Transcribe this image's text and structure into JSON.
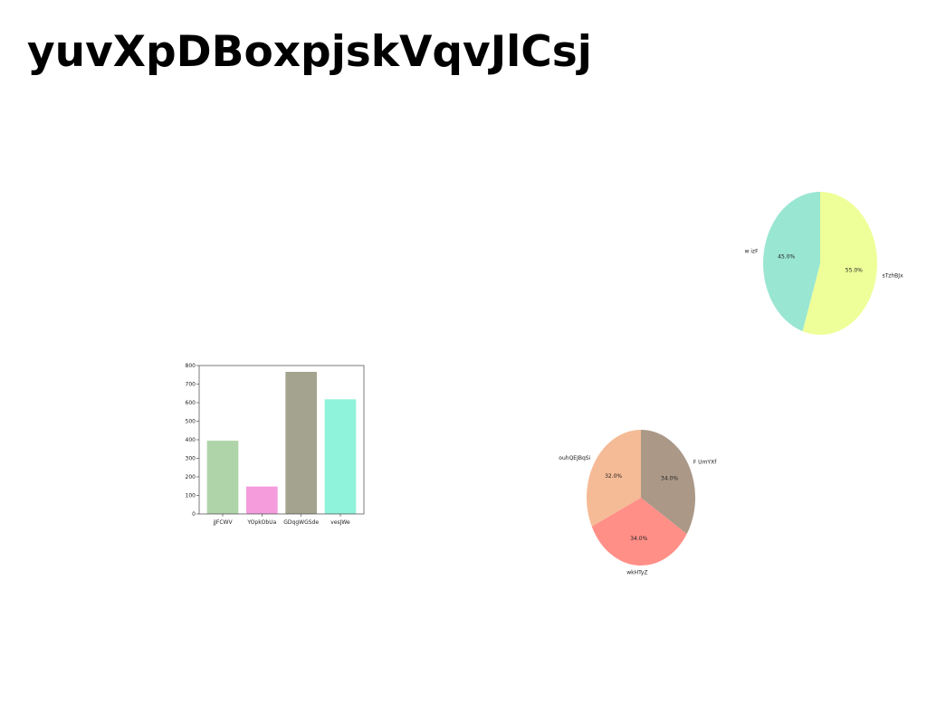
{
  "page": {
    "title": "yuvXpDBoxpjskVqvJlCsj"
  },
  "chart_data": [
    {
      "type": "pie",
      "labels": [
        "sTzhBJx",
        "w izF"
      ],
      "values": [
        55.0,
        45.0
      ],
      "pct_labels": [
        "55.0%",
        "45.0%"
      ],
      "colors": [
        "#eeff99",
        "#99e6d2"
      ]
    },
    {
      "type": "pie",
      "labels": [
        "F UmYXf",
        "wkHTyZ",
        "ouhQEJBqSi"
      ],
      "values": [
        34.0,
        34.0,
        32.0
      ],
      "pct_labels": [
        "34.0%",
        "34.0%",
        "32.0%"
      ],
      "colors": [
        "#ab9887",
        "#ff8f87",
        "#f5bb96"
      ]
    },
    {
      "type": "bar",
      "categories": [
        "jJFCWV",
        "YOpkObUa",
        "GDqgWGSde",
        "vesJWe"
      ],
      "values": [
        395,
        148,
        766,
        618
      ],
      "colors": [
        "#b0d4aa",
        "#f59cdc",
        "#a3a390",
        "#8ff2da"
      ],
      "ylim": [
        0,
        800
      ],
      "yticks": [
        "0",
        "100",
        "200",
        "300",
        "400",
        "500",
        "600",
        "700",
        "800"
      ]
    }
  ]
}
